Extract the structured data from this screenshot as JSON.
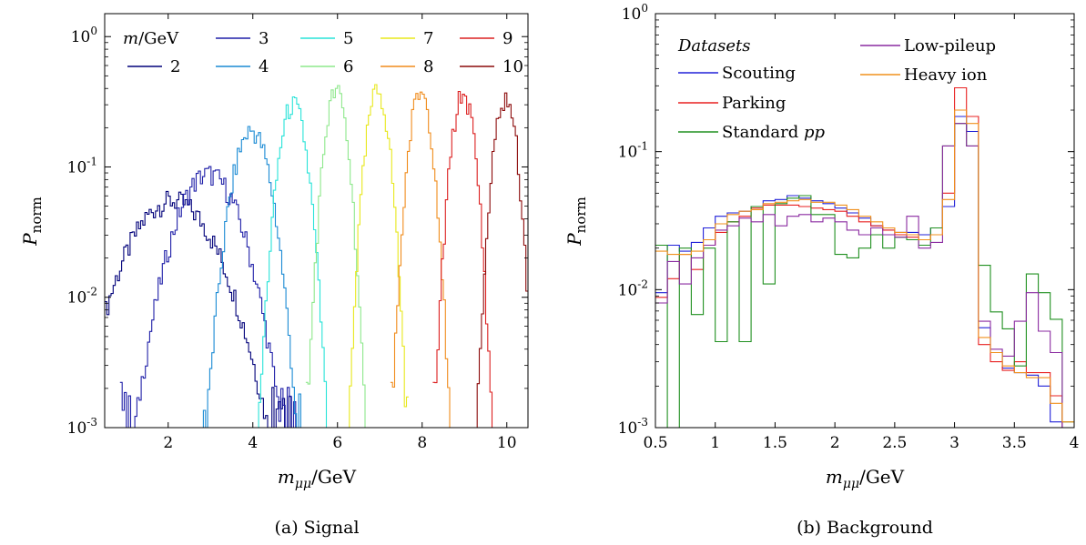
{
  "chart_data": [
    {
      "type": "line",
      "drawstyle": "steps",
      "caption": "(a)  Signal",
      "xlabel": "m_μμ/GeV",
      "ylabel": "P_norm",
      "xlim": [
        0.5,
        10.5
      ],
      "ylim": [
        0.001,
        1.5
      ],
      "yscale": "log",
      "x_ticks": [
        "2",
        "4",
        "6",
        "8",
        "10"
      ],
      "x_tick_values": [
        2,
        4,
        6,
        8,
        10
      ],
      "y_ticks": [
        "10^0",
        "10^-1",
        "10^-2",
        "10^-3"
      ],
      "y_tick_values": [
        1,
        0.1,
        0.01,
        0.001
      ],
      "legend_title": "m/GeV",
      "legend_position": "top",
      "series": [
        {
          "name": "2",
          "color": "#00007a",
          "peak_x": 2.1,
          "peak_y": 0.055,
          "width": 0.8
        },
        {
          "name": "3",
          "color": "#1f1fa8",
          "peak_x": 2.95,
          "peak_y": 0.088,
          "width": 0.58
        },
        {
          "name": "4",
          "color": "#1a8ad4",
          "peak_x": 3.97,
          "peak_y": 0.19,
          "width": 0.33
        },
        {
          "name": "5",
          "color": "#28e3d8",
          "peak_x": 4.95,
          "peak_y": 0.3,
          "width": 0.24
        },
        {
          "name": "6",
          "color": "#8ee88c",
          "peak_x": 5.97,
          "peak_y": 0.38,
          "width": 0.2
        },
        {
          "name": "7",
          "color": "#e8e81c",
          "peak_x": 6.95,
          "peak_y": 0.38,
          "width": 0.2
        },
        {
          "name": "8",
          "color": "#f08c1c",
          "peak_x": 7.97,
          "peak_y": 0.38,
          "width": 0.2
        },
        {
          "name": "9",
          "color": "#dc2020",
          "peak_x": 8.97,
          "peak_y": 0.36,
          "width": 0.2
        },
        {
          "name": "10",
          "color": "#8c0a0a",
          "peak_x": 9.97,
          "peak_y": 0.33,
          "width": 0.2
        }
      ]
    },
    {
      "type": "line",
      "drawstyle": "steps",
      "caption": "(b)  Background",
      "xlabel": "m_μμ/GeV",
      "ylabel": "P_norm",
      "xlim": [
        0.5,
        4
      ],
      "ylim": [
        0.001,
        1
      ],
      "yscale": "log",
      "x_ticks": [
        "0.5",
        "1",
        "1.5",
        "2",
        "2.5",
        "3",
        "3.5",
        "4"
      ],
      "x_tick_values": [
        0.5,
        1,
        1.5,
        2,
        2.5,
        3,
        3.5,
        4
      ],
      "y_ticks": [
        "10^0",
        "10^-1",
        "10^-2",
        "10^-3"
      ],
      "y_tick_values": [
        1,
        0.1,
        0.01,
        0.001
      ],
      "legend_title": "Datasets",
      "legend_position": "top",
      "bin_width": 0.1,
      "bin_start": 0.5,
      "series": [
        {
          "name": "Scouting",
          "color": "#2020d8",
          "values": [
            0.0095,
            0.021,
            0.019,
            0.022,
            0.028,
            0.034,
            0.036,
            0.037,
            0.04,
            0.044,
            0.045,
            0.048,
            0.046,
            0.044,
            0.042,
            0.039,
            0.036,
            0.033,
            0.029,
            0.027,
            0.026,
            0.026,
            0.025,
            0.028,
            0.04,
            0.18,
            0.14,
            0.0053,
            0.0035,
            0.0027,
            0.0025,
            0.0024,
            0.002,
            0.0011,
            0.0008
          ]
        },
        {
          "name": "Parking",
          "color": "#e82020",
          "values": [
            0.0088,
            0.012,
            0.018,
            0.014,
            0.021,
            0.026,
            0.031,
            0.034,
            0.039,
            0.041,
            0.041,
            0.041,
            0.04,
            0.039,
            0.038,
            0.037,
            0.034,
            0.031,
            0.029,
            0.027,
            0.025,
            0.024,
            0.023,
            0.025,
            0.05,
            0.29,
            0.18,
            0.004,
            0.003,
            0.0026,
            0.003,
            0.0025,
            0.0025,
            0.0017,
            0.001
          ]
        },
        {
          "name": "Standard pp",
          "color": "#209020",
          "values": [
            0.021,
            0.001,
            0.02,
            0.0066,
            0.02,
            0.0042,
            0.031,
            0.0042,
            0.04,
            0.011,
            0.042,
            0.046,
            0.048,
            0.035,
            0.035,
            0.018,
            0.017,
            0.02,
            0.025,
            0.02,
            0.024,
            0.023,
            0.021,
            0.028,
            0.11,
            0.16,
            0.11,
            0.015,
            0.0069,
            0.0052,
            0.0028,
            0.013,
            0.0095,
            0.0061,
            0.0011
          ]
        },
        {
          "name": "Low-pileup",
          "color": "#8a2aa0",
          "values": [
            0.008,
            0.016,
            0.011,
            0.017,
            0.021,
            0.027,
            0.029,
            0.033,
            0.031,
            0.035,
            0.029,
            0.034,
            0.035,
            0.031,
            0.033,
            0.031,
            0.027,
            0.025,
            0.028,
            0.025,
            0.024,
            0.034,
            0.02,
            0.022,
            0.11,
            0.16,
            0.11,
            0.0059,
            0.0037,
            0.0033,
            0.0059,
            0.0095,
            0.005,
            0.0035,
            0.0009
          ]
        },
        {
          "name": "Heavy ion",
          "color": "#f0901c",
          "values": [
            0.019,
            0.018,
            0.018,
            0.019,
            0.023,
            0.03,
            0.035,
            0.037,
            0.038,
            0.042,
            0.043,
            0.044,
            0.045,
            0.043,
            0.043,
            0.041,
            0.038,
            0.034,
            0.031,
            0.028,
            0.026,
            0.025,
            0.023,
            0.025,
            0.045,
            0.2,
            0.16,
            0.0045,
            0.0035,
            0.0028,
            0.0025,
            0.0023,
            0.0023,
            0.0015,
            0.0011
          ]
        }
      ]
    }
  ]
}
